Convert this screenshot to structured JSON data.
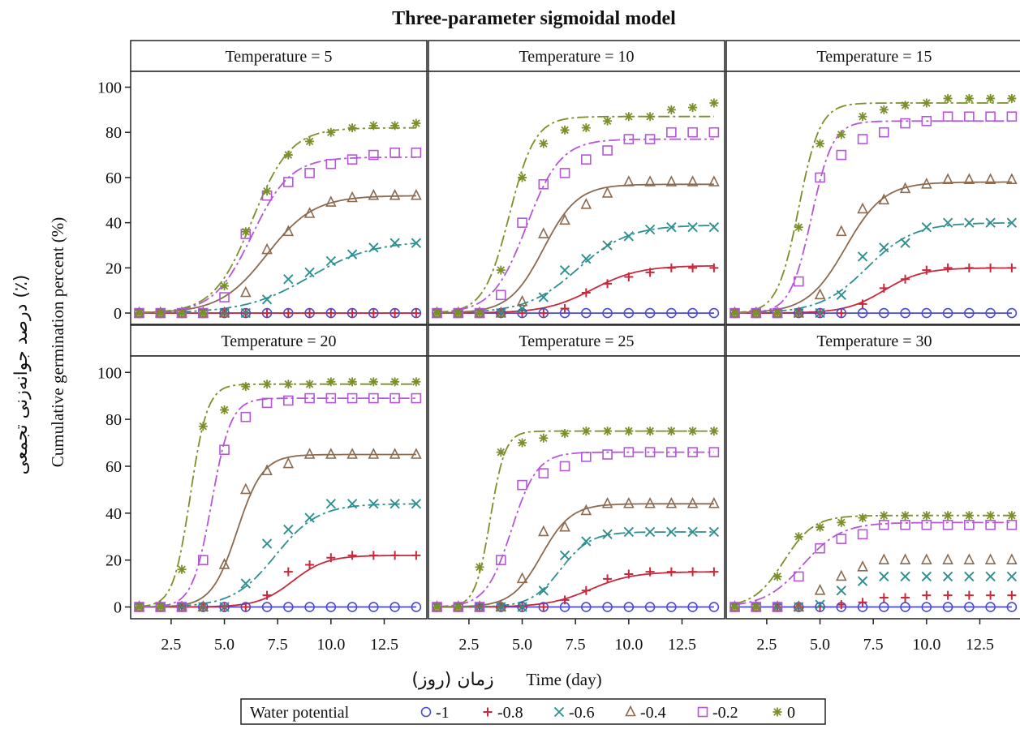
{
  "chart_data": {
    "type": "line",
    "title": "Three-parameter sigmoidal model",
    "xlabel_en": "Time (day)",
    "xlabel_fa": "زمان (روز)",
    "ylabel_en": "Cumulative germination percent (%)",
    "ylabel_fa": "درصد جوانه‌زنی تجمعی (٪)",
    "xlim": [
      0.6,
      14.5
    ],
    "ylim": [
      -5,
      107
    ],
    "x_ticks": [
      "2.5",
      "5.0",
      "7.5",
      "10.0",
      "12.5"
    ],
    "y_ticks": [
      "0",
      "20",
      "40",
      "60",
      "80",
      "100"
    ],
    "legend": {
      "title": "Water potential",
      "placement": "bottom-center",
      "entries": [
        "-1",
        "-0.8",
        "-0.6",
        "-0.4",
        "-0.2",
        "0"
      ]
    },
    "series_style": [
      {
        "name": "-1",
        "marker": "circle",
        "color": "#4a4ad6",
        "dash": "solid"
      },
      {
        "name": "-0.8",
        "marker": "plus",
        "color": "#c8283c",
        "dash": "solid"
      },
      {
        "name": "-0.6",
        "marker": "x",
        "color": "#2f8f8f",
        "dash": "dashdot"
      },
      {
        "name": "-0.4",
        "marker": "triangle",
        "color": "#8b6a4f",
        "dash": "solid"
      },
      {
        "name": "-0.2",
        "marker": "square",
        "color": "#b556d9",
        "dash": "dashdot"
      },
      {
        "name": "0",
        "marker": "star",
        "color": "#7b8f2a",
        "dash": "dashdot"
      }
    ],
    "days": [
      1,
      2,
      3,
      4,
      5,
      6,
      7,
      8,
      9,
      10,
      11,
      12,
      13,
      14
    ],
    "panels": [
      {
        "label": "Temperature = 5",
        "series": [
          {
            "name": "-1",
            "values": [
              0,
              0,
              0,
              0,
              0,
              0,
              0,
              0,
              0,
              0,
              0,
              0,
              0,
              0
            ],
            "fit": {
              "a": 0,
              "b": 1,
              "x0": 5
            }
          },
          {
            "name": "-0.8",
            "values": [
              0,
              0,
              0,
              0,
              0,
              0,
              0,
              0,
              0,
              0,
              0,
              0,
              0,
              0
            ],
            "fit": {
              "a": 0,
              "b": 1,
              "x0": 5
            }
          },
          {
            "name": "-0.6",
            "values": [
              0,
              0,
              0,
              0,
              0,
              0,
              6,
              15,
              18,
              23,
              26,
              29,
              31,
              31
            ],
            "fit": {
              "a": 32,
              "b": 1.5,
              "x0": 9
            }
          },
          {
            "name": "-0.4",
            "values": [
              0,
              0,
              0,
              0,
              0,
              9,
              28,
              36,
              44,
              49,
              51,
              52,
              52,
              52
            ],
            "fit": {
              "a": 52,
              "b": 1.1,
              "x0": 7
            }
          },
          {
            "name": "-0.2",
            "values": [
              0,
              0,
              0,
              0,
              7,
              35,
              52,
              58,
              62,
              66,
              68,
              70,
              71,
              71
            ],
            "fit": {
              "a": 69,
              "b": 0.9,
              "x0": 6.3
            }
          },
          {
            "name": "0",
            "values": [
              0,
              0,
              0,
              0,
              12,
              36,
              54,
              70,
              76,
              80,
              82,
              83,
              83,
              84
            ],
            "fit": {
              "a": 82,
              "b": 0.9,
              "x0": 6.3
            }
          }
        ]
      },
      {
        "label": "Temperature = 10",
        "series": [
          {
            "name": "-1",
            "values": [
              0,
              0,
              0,
              0,
              0,
              0,
              0,
              0,
              0,
              0,
              0,
              0,
              0,
              0
            ],
            "fit": {
              "a": 0,
              "b": 1,
              "x0": 5
            }
          },
          {
            "name": "-0.8",
            "values": [
              0,
              0,
              0,
              0,
              0,
              0,
              2,
              9,
              13,
              16,
              18,
              20,
              20,
              20
            ],
            "fit": {
              "a": 21,
              "b": 1.1,
              "x0": 8.3
            }
          },
          {
            "name": "-0.6",
            "values": [
              0,
              0,
              0,
              0,
              2,
              7,
              19,
              24,
              30,
              34,
              37,
              38,
              38,
              38
            ],
            "fit": {
              "a": 39,
              "b": 1.2,
              "x0": 7.6
            }
          },
          {
            "name": "-0.4",
            "values": [
              0,
              0,
              0,
              0,
              5,
              35,
              41,
              48,
              53,
              58,
              58,
              58,
              58,
              58
            ],
            "fit": {
              "a": 57,
              "b": 0.8,
              "x0": 6
            }
          },
          {
            "name": "-0.2",
            "values": [
              0,
              0,
              0,
              8,
              40,
              57,
              62,
              68,
              72,
              77,
              77,
              80,
              80,
              80
            ],
            "fit": {
              "a": 77,
              "b": 0.8,
              "x0": 5.2
            }
          },
          {
            "name": "0",
            "values": [
              0,
              0,
              0,
              19,
              60,
              75,
              81,
              82,
              85,
              87,
              87,
              90,
              91,
              93
            ],
            "fit": {
              "a": 87,
              "b": 0.6,
              "x0": 4.4
            }
          }
        ]
      },
      {
        "label": "Temperature = 15",
        "series": [
          {
            "name": "-1",
            "values": [
              0,
              0,
              0,
              0,
              0,
              0,
              0,
              0,
              0,
              0,
              0,
              0,
              0,
              0
            ],
            "fit": {
              "a": 0,
              "b": 1,
              "x0": 5
            }
          },
          {
            "name": "-0.8",
            "values": [
              0,
              0,
              0,
              0,
              0,
              0,
              4,
              11,
              15,
              19,
              20,
              20,
              20,
              20
            ],
            "fit": {
              "a": 20,
              "b": 0.9,
              "x0": 8
            }
          },
          {
            "name": "-0.6",
            "values": [
              0,
              0,
              0,
              0,
              0,
              8,
              25,
              29,
              31,
              38,
              40,
              40,
              40,
              40
            ],
            "fit": {
              "a": 40,
              "b": 1.1,
              "x0": 7.2
            }
          },
          {
            "name": "-0.4",
            "values": [
              0,
              0,
              0,
              0,
              8,
              36,
              46,
              50,
              55,
              57,
              59,
              59,
              59,
              59
            ],
            "fit": {
              "a": 58,
              "b": 0.9,
              "x0": 6.2
            }
          },
          {
            "name": "-0.2",
            "values": [
              0,
              0,
              0,
              14,
              60,
              70,
              77,
              80,
              84,
              85,
              87,
              87,
              87,
              87
            ],
            "fit": {
              "a": 85,
              "b": 0.5,
              "x0": 4.6
            }
          },
          {
            "name": "0",
            "values": [
              0,
              0,
              0,
              38,
              75,
              79,
              87,
              90,
              92,
              93,
              95,
              95,
              95,
              95
            ],
            "fit": {
              "a": 93,
              "b": 0.5,
              "x0": 4
            }
          }
        ]
      },
      {
        "label": "Temperature = 20",
        "series": [
          {
            "name": "-1",
            "values": [
              0,
              0,
              0,
              0,
              0,
              0,
              0,
              0,
              0,
              0,
              0,
              0,
              0,
              0
            ],
            "fit": {
              "a": 0,
              "b": 1,
              "x0": 5
            }
          },
          {
            "name": "-0.8",
            "values": [
              0,
              0,
              0,
              0,
              0,
              0,
              5,
              15,
              18,
              21,
              22,
              22,
              22,
              22
            ],
            "fit": {
              "a": 22,
              "b": 0.8,
              "x0": 8.2
            }
          },
          {
            "name": "-0.6",
            "values": [
              0,
              0,
              0,
              0,
              0,
              10,
              27,
              33,
              38,
              44,
              44,
              44,
              44,
              44
            ],
            "fit": {
              "a": 44,
              "b": 1,
              "x0": 7.4
            }
          },
          {
            "name": "-0.4",
            "values": [
              0,
              0,
              0,
              0,
              18,
              50,
              58,
              61,
              65,
              65,
              65,
              65,
              65,
              65
            ],
            "fit": {
              "a": 65,
              "b": 0.6,
              "x0": 5.6
            }
          },
          {
            "name": "-0.2",
            "values": [
              0,
              0,
              0,
              20,
              67,
              81,
              87,
              88,
              89,
              89,
              89,
              89,
              89,
              89
            ],
            "fit": {
              "a": 89,
              "b": 0.45,
              "x0": 4.4
            }
          },
          {
            "name": "0",
            "values": [
              0,
              0,
              16,
              77,
              84,
              94,
              95,
              95,
              95,
              96,
              96,
              96,
              96,
              96
            ],
            "fit": {
              "a": 95,
              "b": 0.4,
              "x0": 3.4
            }
          }
        ]
      },
      {
        "label": "Temperature = 25",
        "series": [
          {
            "name": "-1",
            "values": [
              0,
              0,
              0,
              0,
              0,
              0,
              0,
              0,
              0,
              0,
              0,
              0,
              0,
              0
            ],
            "fit": {
              "a": 0,
              "b": 1,
              "x0": 5
            }
          },
          {
            "name": "-0.8",
            "values": [
              0,
              0,
              0,
              0,
              0,
              0,
              3,
              7,
              12,
              14,
              15,
              15,
              15,
              15
            ],
            "fit": {
              "a": 15,
              "b": 1,
              "x0": 8.2
            }
          },
          {
            "name": "-0.6",
            "values": [
              0,
              0,
              0,
              0,
              0,
              7,
              22,
              28,
              31,
              32,
              32,
              32,
              32,
              32
            ],
            "fit": {
              "a": 32,
              "b": 0.7,
              "x0": 6.8
            }
          },
          {
            "name": "-0.4",
            "values": [
              0,
              0,
              0,
              0,
              12,
              32,
              34,
              41,
              44,
              44,
              44,
              44,
              44,
              44
            ],
            "fit": {
              "a": 44,
              "b": 0.7,
              "x0": 5.9
            }
          },
          {
            "name": "-0.2",
            "values": [
              0,
              0,
              0,
              20,
              52,
              57,
              60,
              64,
              65,
              66,
              66,
              66,
              66,
              66
            ],
            "fit": {
              "a": 66,
              "b": 0.6,
              "x0": 4.5
            }
          },
          {
            "name": "0",
            "values": [
              0,
              0,
              17,
              66,
              70,
              72,
              74,
              75,
              75,
              75,
              75,
              75,
              75,
              75
            ],
            "fit": {
              "a": 75,
              "b": 0.35,
              "x0": 3.5
            }
          }
        ]
      },
      {
        "label": "Temperature = 30",
        "series": [
          {
            "name": "-1",
            "values": [
              0,
              0,
              0,
              0,
              0,
              0,
              0,
              0,
              0,
              0,
              0,
              0,
              0,
              0
            ],
            "fit": {
              "a": 0,
              "b": 1,
              "x0": 5
            }
          },
          {
            "name": "-0.8",
            "values": [
              0,
              0,
              0,
              0,
              0,
              1,
              2,
              4,
              4,
              5,
              5,
              5,
              5,
              5
            ],
            "fit": null
          },
          {
            "name": "-0.6",
            "values": [
              0,
              0,
              0,
              0,
              1,
              7,
              11,
              13,
              13,
              13,
              13,
              13,
              13,
              13
            ],
            "fit": null
          },
          {
            "name": "-0.4",
            "values": [
              0,
              0,
              0,
              0,
              7,
              13,
              17,
              20,
              20,
              20,
              20,
              20,
              20,
              20
            ],
            "fit": null
          },
          {
            "name": "-0.2",
            "values": [
              0,
              0,
              0,
              13,
              25,
              29,
              31,
              35,
              35,
              35,
              35,
              35,
              35,
              35
            ],
            "fit": {
              "a": 36,
              "b": 0.9,
              "x0": 4.2
            }
          },
          {
            "name": "0",
            "values": [
              0,
              0,
              13,
              30,
              34,
              36,
              38,
              39,
              39,
              39,
              39,
              39,
              39,
              39
            ],
            "fit": {
              "a": 39,
              "b": 0.7,
              "x0": 3.3
            }
          }
        ]
      }
    ]
  }
}
